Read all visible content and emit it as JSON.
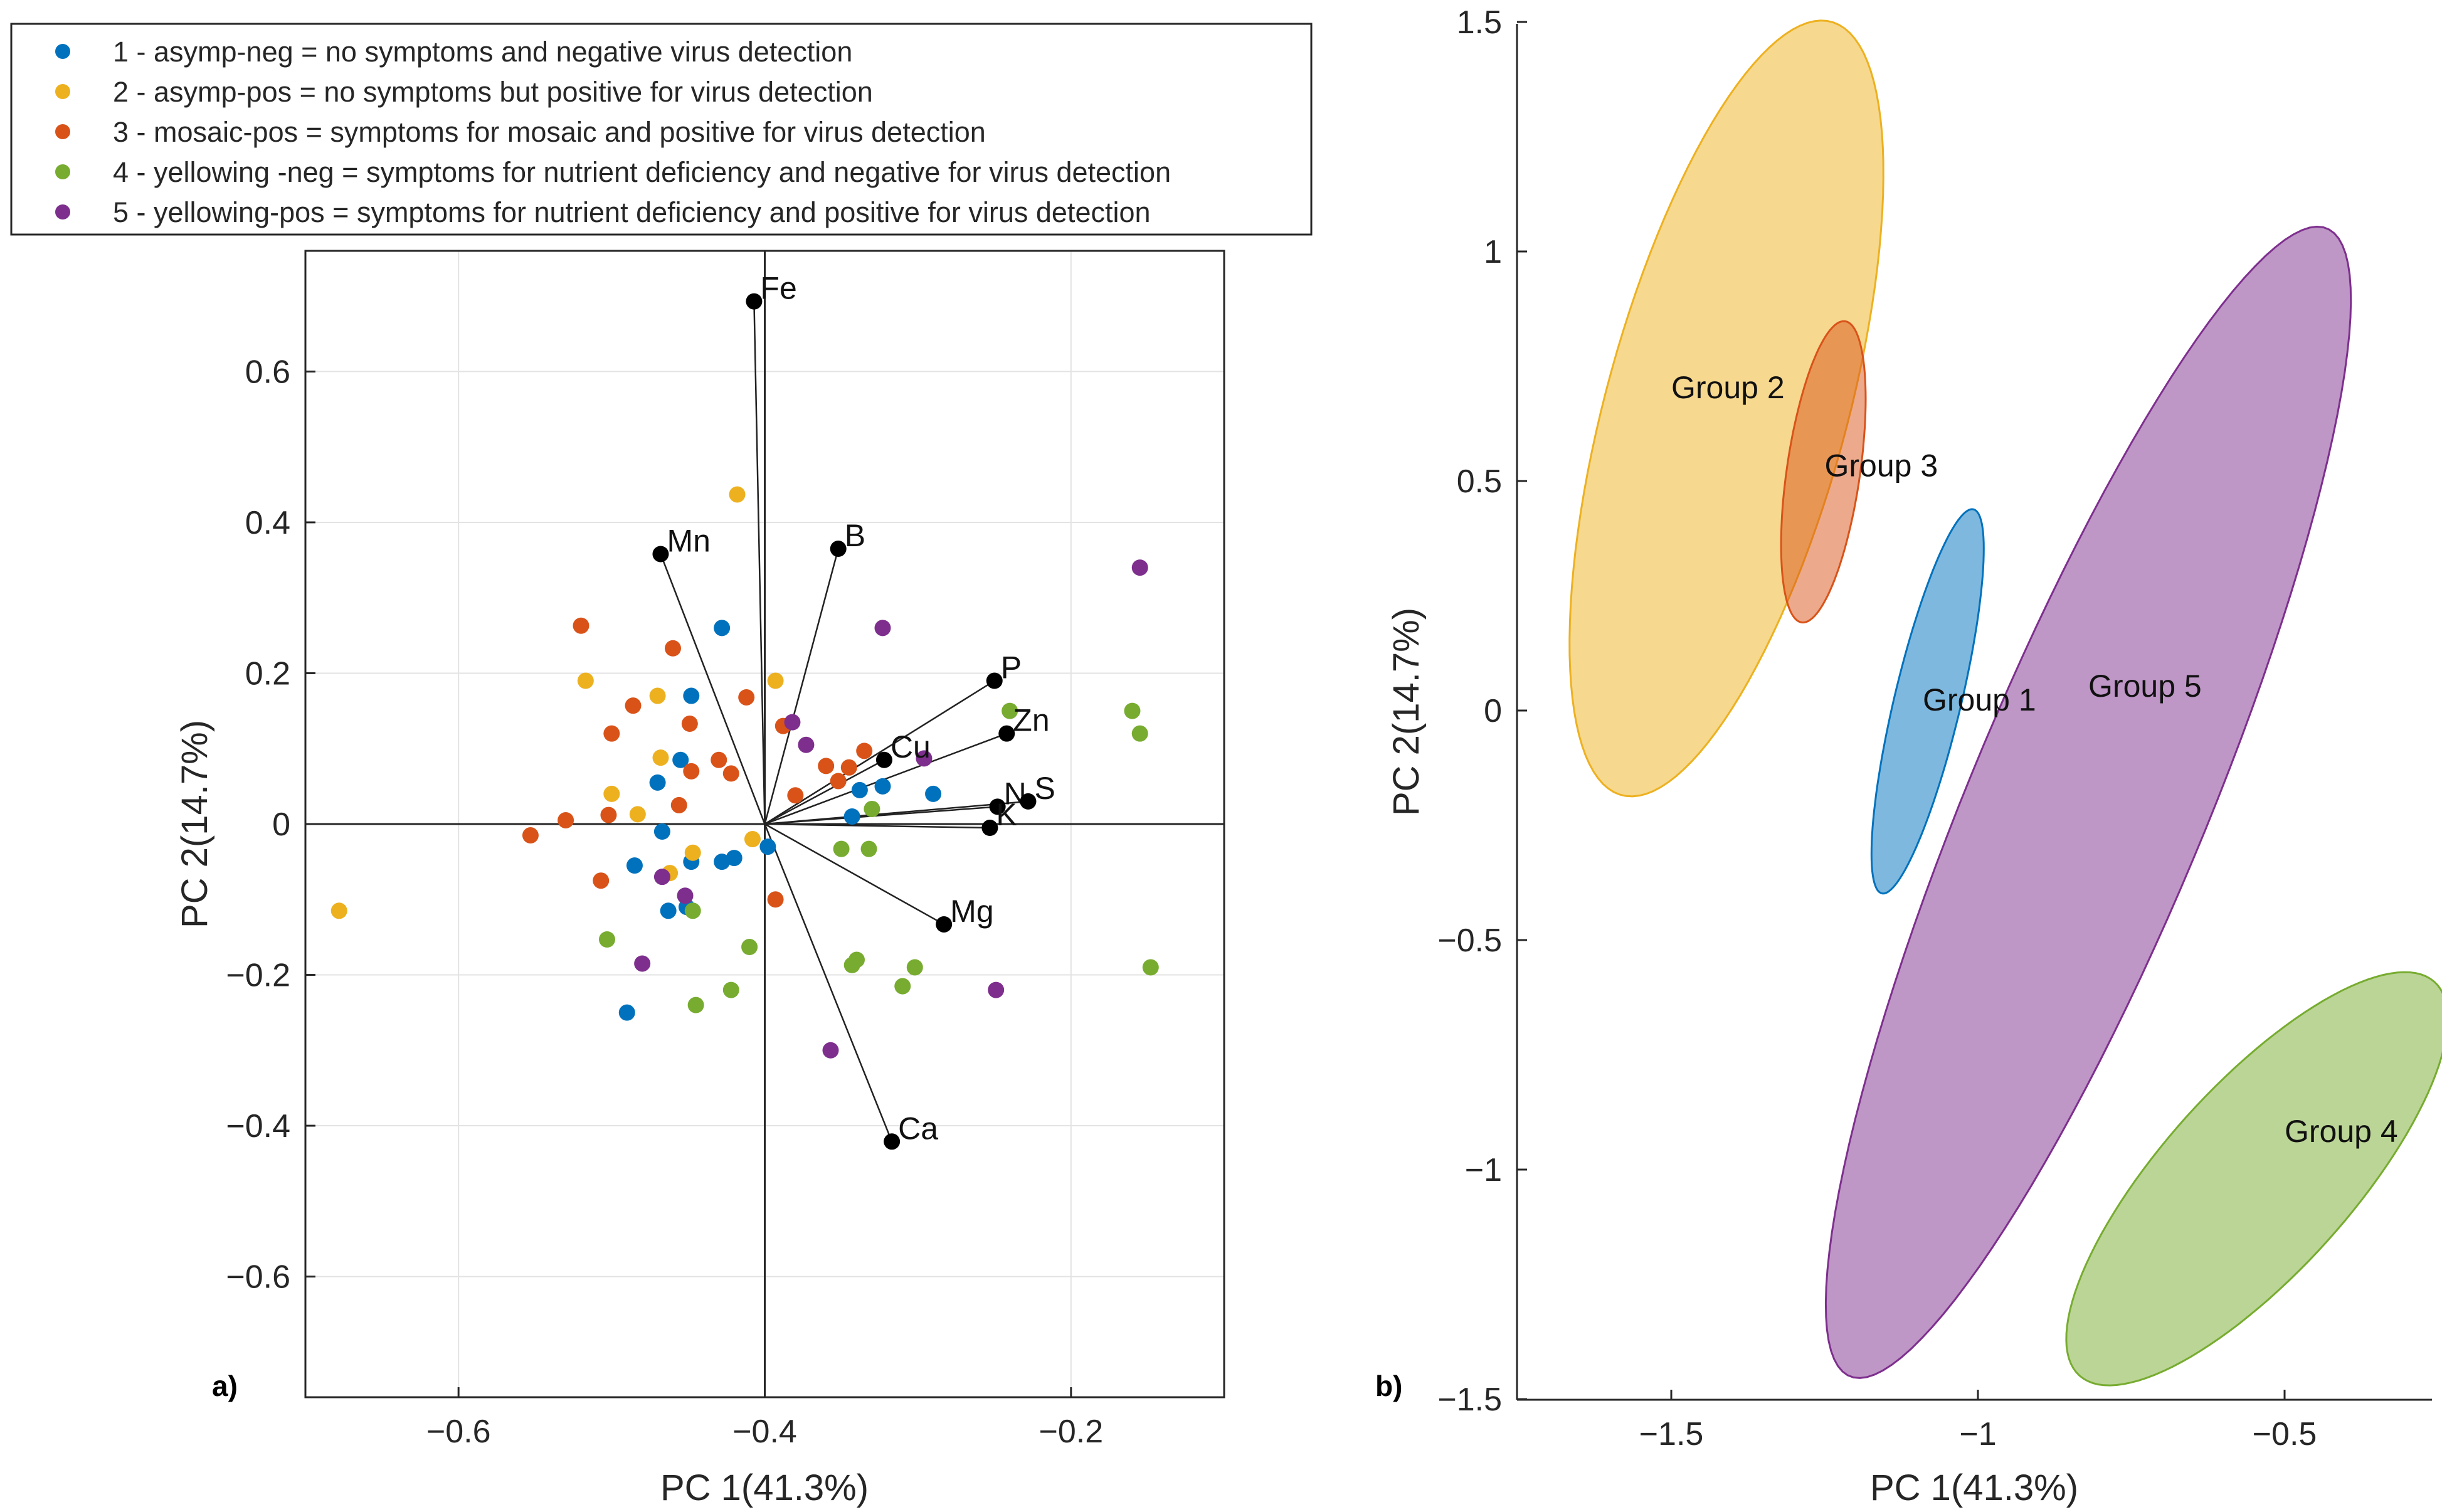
{
  "chart_data": [
    {
      "type": "scatter",
      "subtype": "pca-biplot",
      "panel_label": "a)",
      "xlabel": "PC 1(41.3%)",
      "ylabel": "PC 2(14.7%)",
      "xlim": [
        -0.7,
        -0.1
      ],
      "ylim": [
        -0.76,
        0.76
      ],
      "grid": true,
      "xticks": [
        -0.6,
        -0.4,
        -0.2
      ],
      "yticks": [
        -0.6,
        -0.4,
        -0.2,
        0,
        0.2,
        0.4,
        0.6
      ],
      "xtick_labels": [
        "−0.6",
        "−0.4",
        "−0.2"
      ],
      "ytick_labels": [
        "−0.6",
        "−0.4",
        "−0.2",
        "0",
        "0.2",
        "0.4",
        "0.6"
      ],
      "origin": [
        -0.4,
        0
      ],
      "legend": {
        "position": "top-left",
        "entries": [
          {
            "label": "1 - asymp-neg = no symptoms and negative virus detection",
            "color": "#0072BD"
          },
          {
            "label": "2 - asymp-pos = no symptoms but positive for virus  detection",
            "color": "#EDB120"
          },
          {
            "label": "3 - mosaic-pos = symptoms for mosaic and positive for virus detection",
            "color": "#D95319"
          },
          {
            "label": "4 - yellowing -neg = symptoms for nutrient deficiency and negative for virus detection",
            "color": "#77AC30"
          },
          {
            "label": "5 - yellowing-pos = symptoms for nutrient deficiency and positive for virus detection",
            "color": "#7E2F8E"
          }
        ]
      },
      "series": [
        {
          "name": "1 - asymp-neg",
          "color": "#0072BD",
          "points": [
            [
              -0.428,
              0.26
            ],
            [
              -0.448,
              0.17
            ],
            [
              -0.455,
              0.085
            ],
            [
              -0.47,
              0.055
            ],
            [
              -0.398,
              -0.03
            ],
            [
              -0.467,
              -0.01
            ],
            [
              -0.485,
              -0.055
            ],
            [
              -0.448,
              -0.05
            ],
            [
              -0.428,
              -0.05
            ],
            [
              -0.42,
              -0.045
            ],
            [
              -0.463,
              -0.115
            ],
            [
              -0.451,
              -0.11
            ],
            [
              -0.49,
              -0.25
            ],
            [
              -0.343,
              0.01
            ],
            [
              -0.338,
              0.045
            ],
            [
              -0.323,
              0.05
            ],
            [
              -0.29,
              0.04
            ]
          ]
        },
        {
          "name": "2 - asymp-pos",
          "color": "#EDB120",
          "points": [
            [
              -0.418,
              0.437
            ],
            [
              -0.517,
              0.19
            ],
            [
              -0.47,
              0.17
            ],
            [
              -0.393,
              0.19
            ],
            [
              -0.468,
              0.088
            ],
            [
              -0.5,
              0.04
            ],
            [
              -0.483,
              0.013
            ],
            [
              -0.462,
              -0.065
            ],
            [
              -0.447,
              -0.038
            ],
            [
              -0.408,
              -0.02
            ],
            [
              -0.678,
              -0.115
            ]
          ]
        },
        {
          "name": "3 - mosaic-pos",
          "color": "#D95319",
          "points": [
            [
              -0.52,
              0.263
            ],
            [
              -0.46,
              0.233
            ],
            [
              -0.412,
              0.168
            ],
            [
              -0.486,
              0.157
            ],
            [
              -0.449,
              0.133
            ],
            [
              -0.5,
              0.12
            ],
            [
              -0.388,
              0.13
            ],
            [
              -0.448,
              0.07
            ],
            [
              -0.43,
              0.085
            ],
            [
              -0.422,
              0.067
            ],
            [
              -0.38,
              0.038
            ],
            [
              -0.36,
              0.077
            ],
            [
              -0.345,
              0.075
            ],
            [
              -0.335,
              0.097
            ],
            [
              -0.352,
              0.057
            ],
            [
              -0.456,
              0.025
            ],
            [
              -0.502,
              0.012
            ],
            [
              -0.53,
              0.005
            ],
            [
              -0.553,
              -0.015
            ],
            [
              -0.507,
              -0.075
            ],
            [
              -0.393,
              -0.1
            ]
          ]
        },
        {
          "name": "4 - yellowing -neg",
          "color": "#77AC30",
          "points": [
            [
              -0.24,
              0.15
            ],
            [
              -0.16,
              0.15
            ],
            [
              -0.155,
              0.12
            ],
            [
              -0.33,
              0.02
            ],
            [
              -0.35,
              -0.033
            ],
            [
              -0.332,
              -0.033
            ],
            [
              -0.503,
              -0.153
            ],
            [
              -0.41,
              -0.163
            ],
            [
              -0.34,
              -0.18
            ],
            [
              -0.343,
              -0.187
            ],
            [
              -0.302,
              -0.19
            ],
            [
              -0.31,
              -0.215
            ],
            [
              -0.422,
              -0.22
            ],
            [
              -0.445,
              -0.24
            ],
            [
              -0.148,
              -0.19
            ],
            [
              -0.447,
              -0.115
            ]
          ]
        },
        {
          "name": "5 - yellowing-pos",
          "color": "#7E2F8E",
          "points": [
            [
              -0.155,
              0.34
            ],
            [
              -0.323,
              0.26
            ],
            [
              -0.382,
              0.135
            ],
            [
              -0.373,
              0.105
            ],
            [
              -0.296,
              0.087
            ],
            [
              -0.467,
              -0.07
            ],
            [
              -0.452,
              -0.095
            ],
            [
              -0.48,
              -0.185
            ],
            [
              -0.249,
              -0.22
            ],
            [
              -0.357,
              -0.3
            ]
          ]
        }
      ],
      "loadings": [
        {
          "name": "Fe",
          "x": -0.407,
          "y": 0.693
        },
        {
          "name": "Mn",
          "x": -0.468,
          "y": 0.358
        },
        {
          "name": "B",
          "x": -0.352,
          "y": 0.365
        },
        {
          "name": "P",
          "x": -0.25,
          "y": 0.19
        },
        {
          "name": "Zn",
          "x": -0.242,
          "y": 0.12
        },
        {
          "name": "Cu",
          "x": -0.322,
          "y": 0.085
        },
        {
          "name": "N",
          "x": -0.248,
          "y": 0.023
        },
        {
          "name": "S",
          "x": -0.228,
          "y": 0.03
        },
        {
          "name": "K",
          "x": -0.253,
          "y": -0.005
        },
        {
          "name": "Mg",
          "x": -0.283,
          "y": -0.133
        },
        {
          "name": "Ca",
          "x": -0.317,
          "y": -0.421
        }
      ]
    },
    {
      "type": "scatter",
      "subtype": "confidence-ellipses",
      "panel_label": "b)",
      "xlabel": "PC 1(41.3%)",
      "ylabel": "PC 2(14.7%)",
      "xlim": [
        -1.75,
        -0.25
      ],
      "ylim": [
        -1.5,
        1.5
      ],
      "grid": false,
      "xticks": [
        -1.5,
        -1,
        -0.5
      ],
      "yticks": [
        -1.5,
        -1,
        -0.5,
        0,
        0.5,
        1,
        1.5
      ],
      "xtick_labels": [
        "−1.5",
        "−1",
        "−0.5"
      ],
      "ytick_labels": [
        "−1.5",
        "−1",
        "−0.5",
        "0",
        "0.5",
        "1",
        "1.5"
      ],
      "ellipses": [
        {
          "name": "Group 2",
          "label": "Group 2",
          "color": "#EDB120",
          "center": [
            -1.41,
            0.658
          ],
          "a": 0.86,
          "b": 0.2,
          "angle_deg": 79,
          "label_at": [
            -1.5,
            0.68
          ]
        },
        {
          "name": "Group 5",
          "label": "Group 5",
          "color": "#7E2F8E",
          "center": [
            -0.82,
            -0.2
          ],
          "a": 1.31,
          "b": 0.2,
          "angle_deg": 73,
          "label_at": [
            -0.82,
            0.03
          ]
        },
        {
          "name": "Group 4",
          "label": "Group 4",
          "color": "#77AC30",
          "center": [
            -0.545,
            -1.02
          ],
          "a": 0.52,
          "b": 0.17,
          "angle_deg": 58,
          "label_at": [
            -0.5,
            -0.94
          ]
        },
        {
          "name": "Group 1",
          "label": "Group 1",
          "color": "#0072BD",
          "center": [
            -1.082,
            0.02
          ],
          "a": 0.425,
          "b": 0.055,
          "angle_deg": 80,
          "label_at": [
            -1.09,
            0.0
          ]
        },
        {
          "name": "Group 3",
          "label": "Group 3",
          "color": "#D95319",
          "center": [
            -1.252,
            0.52
          ],
          "a": 0.33,
          "b": 0.06,
          "angle_deg": 84,
          "label_at": [
            -1.25,
            0.51
          ]
        }
      ]
    }
  ]
}
